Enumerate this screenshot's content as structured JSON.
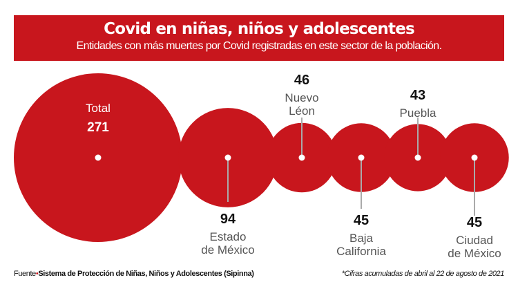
{
  "header": {
    "title": "Covid en niñas, niños y adolescentes",
    "subtitle": "Entidades con más muertes por Covid registradas en este sector de la población."
  },
  "chart_data": {
    "type": "bubble",
    "title": "Covid en niñas, niños y adolescentes",
    "subtitle": "Entidades con más muertes por Covid registradas en este sector de la población.",
    "bubble_color": "#c8161d",
    "series": [
      {
        "label": [
          "Total"
        ],
        "value": 271,
        "value_label": "271"
      },
      {
        "label": [
          "Estado",
          "de México"
        ],
        "value": 94,
        "value_label": "94"
      },
      {
        "label": [
          "Nuevo",
          "Léon"
        ],
        "value": 46,
        "value_label": "46"
      },
      {
        "label": [
          "Baja",
          "California"
        ],
        "value": 45,
        "value_label": "45"
      },
      {
        "label": [
          "Puebla"
        ],
        "value": 43,
        "value_label": "43"
      },
      {
        "label": [
          "Ciudad",
          "de México"
        ],
        "value": 45,
        "value_label": "45"
      }
    ]
  },
  "footer": {
    "source_prefix": "Fuente",
    "source_separator": "•",
    "source": "Sistema de Protección de Niñas, Niños y Adolescentes (Sipinna)",
    "note": "*Cifras acumuladas de abril al 22 de agosto de 2021"
  }
}
